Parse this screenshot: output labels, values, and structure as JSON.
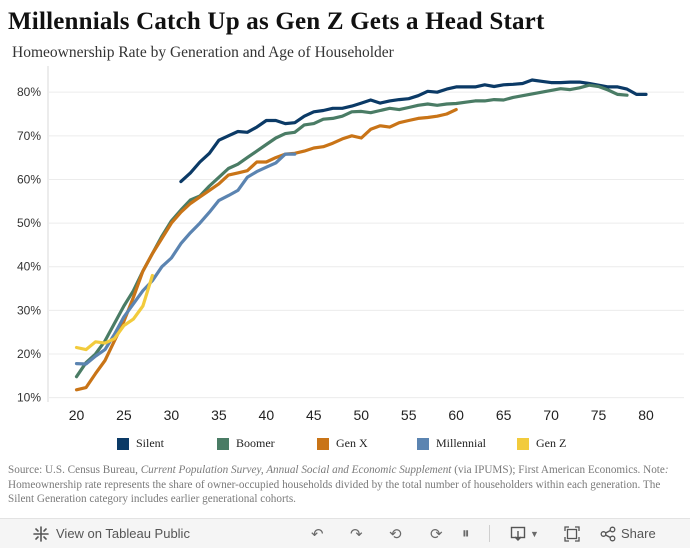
{
  "header": {
    "title": "Millennials Catch Up as Gen Z Gets a Head Start",
    "subtitle": "Homeownership Rate by Generation and Age of Householder"
  },
  "chart_data": {
    "type": "line",
    "title": "Millennials Catch Up as Gen Z Gets a Head Start",
    "subtitle": "Homeownership Rate by Generation and Age of Householder",
    "xlabel": "",
    "ylabel": "",
    "xlim": [
      17,
      84
    ],
    "ylim": [
      9,
      86
    ],
    "x_ticks": [
      20,
      25,
      30,
      35,
      40,
      45,
      50,
      55,
      60,
      65,
      70,
      75,
      80
    ],
    "y_ticks": [
      10,
      20,
      30,
      40,
      50,
      60,
      70,
      80
    ],
    "y_tick_labels": [
      "10%",
      "20%",
      "30%",
      "40%",
      "50%",
      "60%",
      "70%",
      "80%"
    ],
    "grid": "horizontal",
    "legend": "bottom",
    "series": [
      {
        "name": "Silent",
        "color": "#0b3a66",
        "x": [
          31,
          32,
          33,
          34,
          35,
          36,
          37,
          38,
          39,
          40,
          41,
          42,
          43,
          44,
          45,
          46,
          47,
          48,
          49,
          50,
          51,
          52,
          53,
          54,
          55,
          56,
          57,
          58,
          59,
          60,
          61,
          62,
          63,
          64,
          65,
          66,
          67,
          68,
          69,
          70,
          71,
          72,
          73,
          74,
          75,
          76,
          77,
          78,
          79,
          80
        ],
        "y": [
          59.5,
          61.5,
          64.0,
          66.0,
          69.0,
          70.0,
          71.0,
          70.8,
          72.0,
          73.5,
          73.5,
          72.8,
          73.0,
          74.5,
          75.5,
          75.8,
          76.3,
          76.3,
          76.8,
          77.5,
          78.2,
          77.5,
          78.0,
          78.3,
          78.5,
          79.2,
          80.2,
          80.0,
          80.7,
          81.2,
          81.2,
          81.2,
          81.7,
          81.3,
          81.7,
          81.8,
          82.0,
          82.8,
          82.5,
          82.2,
          82.2,
          82.3,
          82.3,
          82.0,
          81.6,
          81.2,
          81.2,
          80.7,
          79.5,
          79.5
        ]
      },
      {
        "name": "Boomer",
        "color": "#4a7c65",
        "x": [
          20,
          21,
          22,
          23,
          24,
          25,
          26,
          27,
          28,
          29,
          30,
          31,
          32,
          33,
          34,
          35,
          36,
          37,
          38,
          39,
          40,
          41,
          42,
          43,
          44,
          45,
          46,
          47,
          48,
          49,
          50,
          51,
          52,
          53,
          54,
          55,
          56,
          57,
          58,
          59,
          60,
          61,
          62,
          63,
          64,
          65,
          66,
          67,
          68,
          69,
          70,
          71,
          72,
          73,
          74,
          75,
          76,
          77,
          78
        ],
        "y": [
          14.8,
          18.0,
          20.0,
          23.0,
          27.0,
          31.0,
          34.5,
          39.0,
          43.0,
          47.0,
          50.5,
          53.0,
          55.3,
          56.2,
          58.5,
          60.5,
          62.5,
          63.5,
          65.0,
          66.5,
          68.0,
          69.5,
          70.5,
          70.8,
          72.5,
          72.8,
          73.8,
          74.0,
          74.5,
          75.5,
          75.6,
          75.3,
          75.8,
          76.3,
          76.0,
          76.5,
          77.0,
          77.3,
          77.0,
          77.3,
          77.4,
          77.7,
          78.0,
          78.0,
          78.3,
          78.2,
          78.8,
          79.2,
          79.6,
          80.0,
          80.4,
          80.8,
          80.6,
          81.0,
          81.6,
          81.3,
          80.5,
          79.5,
          79.3
        ]
      },
      {
        "name": "Gen X",
        "color": "#c97417",
        "x": [
          20,
          21,
          22,
          23,
          24,
          25,
          26,
          27,
          28,
          29,
          30,
          31,
          32,
          33,
          34,
          35,
          36,
          37,
          38,
          39,
          40,
          41,
          42,
          43,
          44,
          45,
          46,
          47,
          48,
          49,
          50,
          51,
          52,
          53,
          54,
          55,
          56,
          57,
          58,
          59,
          60
        ],
        "y": [
          11.8,
          12.3,
          15.5,
          18.5,
          23.0,
          27.5,
          33.0,
          39.0,
          43.0,
          46.5,
          50.0,
          52.5,
          54.5,
          56.0,
          57.5,
          59.0,
          61.0,
          61.5,
          62.0,
          64.0,
          64.0,
          65.0,
          65.8,
          66.0,
          66.5,
          67.2,
          67.5,
          68.3,
          69.3,
          70.0,
          69.5,
          71.5,
          72.3,
          72.0,
          73.0,
          73.5,
          74.0,
          74.2,
          74.5,
          75.0,
          76.0
        ]
      },
      {
        "name": "Millennial",
        "color": "#5b84b1",
        "x": [
          20,
          21,
          22,
          23,
          24,
          25,
          26,
          27,
          28,
          29,
          30,
          31,
          32,
          33,
          34,
          35,
          36,
          37,
          38,
          39,
          40,
          41,
          42,
          43
        ],
        "y": [
          17.8,
          17.7,
          19.5,
          21.0,
          24.5,
          28.5,
          31.5,
          34.5,
          36.8,
          40.0,
          42.0,
          45.3,
          47.8,
          50.0,
          52.5,
          55.2,
          56.3,
          57.5,
          60.5,
          61.8,
          62.8,
          63.8,
          65.8,
          65.8
        ]
      },
      {
        "name": "Gen Z",
        "color": "#f2cb3c",
        "x": [
          20,
          21,
          22,
          23,
          24,
          25,
          26,
          27,
          28
        ],
        "y": [
          21.5,
          21.0,
          22.8,
          22.5,
          23.5,
          26.5,
          28.0,
          31.0,
          38.0
        ]
      }
    ]
  },
  "source": {
    "prefix": "Source: U.S. Census Bureau, ",
    "survey": "Current Population Survey, Annual Social and Economic Supplement",
    "after_survey": " (via IPUMS); First American Economics. Note",
    "note_colon": ":",
    "note_text": " Homeownership rate represents the share of owner-occupied households divided by the total number of householders within each generation. The Silent Generation category includes earlier generational cohorts."
  },
  "toolbar": {
    "view_label": "View on Tableau Public",
    "share_label": "Share"
  }
}
